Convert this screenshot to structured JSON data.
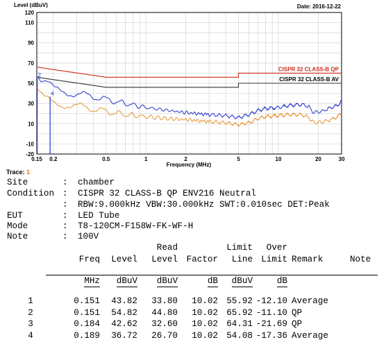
{
  "chart_data": {
    "type": "line",
    "title": "",
    "ylabel": "Level (dBuV)",
    "xlabel": "Frequency (MHz)",
    "date": "Date: 2016-12-22",
    "x_scale": "log",
    "xlim": [
      0.15,
      30
    ],
    "ylim": [
      -20,
      120
    ],
    "x_ticks": [
      {
        "v": 0.15,
        "label": "0.15"
      },
      {
        "v": 0.2,
        "label": "0.2"
      },
      {
        "v": 0.5,
        "label": "0.5"
      },
      {
        "v": 1,
        "label": "1"
      },
      {
        "v": 2,
        "label": "2"
      },
      {
        "v": 5,
        "label": "5"
      },
      {
        "v": 10,
        "label": "10"
      },
      {
        "v": 20,
        "label": "20"
      },
      {
        "v": 30,
        "label": "30"
      }
    ],
    "y_ticks": [
      {
        "v": -20,
        "label": "-20"
      },
      {
        "v": -10,
        "label": "-10"
      },
      {
        "v": 10,
        "label": "10"
      },
      {
        "v": 30,
        "label": "30"
      },
      {
        "v": 50,
        "label": "50"
      },
      {
        "v": 70,
        "label": "70"
      },
      {
        "v": 90,
        "label": "90"
      },
      {
        "v": 110,
        "label": "110"
      },
      {
        "v": 120,
        "label": "120"
      }
    ],
    "grid": true,
    "limit_lines": [
      {
        "name": "CISPR 32 CLASS-B QP",
        "color": "#cc2a1a",
        "points": [
          [
            0.15,
            66
          ],
          [
            0.5,
            56
          ],
          [
            5,
            56
          ],
          [
            5,
            60
          ],
          [
            30,
            60
          ]
        ]
      },
      {
        "name": "CISPR 32 CLASS-B AV",
        "color": "#333333",
        "points": [
          [
            0.15,
            56
          ],
          [
            0.5,
            46
          ],
          [
            5,
            46
          ],
          [
            5,
            50
          ],
          [
            30,
            50
          ]
        ]
      }
    ],
    "series": [
      {
        "color": "#1f2fc8",
        "points": [
          [
            0.15,
            57
          ],
          [
            0.16,
            51
          ],
          [
            0.17,
            49
          ],
          [
            0.184,
            48
          ],
          [
            0.2,
            44
          ],
          [
            0.25,
            42
          ],
          [
            0.3,
            39
          ],
          [
            0.4,
            37
          ],
          [
            0.5,
            34
          ],
          [
            0.7,
            30
          ],
          [
            1,
            26
          ],
          [
            1.5,
            23
          ],
          [
            2,
            21
          ],
          [
            3,
            19
          ],
          [
            4,
            18
          ],
          [
            5,
            16
          ],
          [
            6,
            19
          ],
          [
            7,
            23
          ],
          [
            8,
            25
          ],
          [
            10,
            26
          ],
          [
            12,
            28
          ],
          [
            15,
            29
          ],
          [
            17,
            27
          ],
          [
            18,
            22
          ],
          [
            20,
            21
          ],
          [
            22,
            23
          ],
          [
            25,
            26
          ],
          [
            28,
            28
          ],
          [
            30,
            33
          ]
        ]
      },
      {
        "color": "#e8902a",
        "points": [
          [
            0.15,
            42
          ],
          [
            0.16,
            37
          ],
          [
            0.17,
            34
          ],
          [
            0.184,
            33
          ],
          [
            0.2,
            31
          ],
          [
            0.25,
            29
          ],
          [
            0.3,
            27
          ],
          [
            0.4,
            25
          ],
          [
            0.5,
            22
          ],
          [
            0.7,
            19
          ],
          [
            1,
            17
          ],
          [
            1.5,
            15
          ],
          [
            2,
            14
          ],
          [
            3,
            12
          ],
          [
            4,
            11
          ],
          [
            5,
            9
          ],
          [
            6,
            11
          ],
          [
            7,
            15
          ],
          [
            8,
            17
          ],
          [
            10,
            18
          ],
          [
            12,
            19
          ],
          [
            15,
            19
          ],
          [
            17,
            16
          ],
          [
            18,
            12
          ],
          [
            20,
            11
          ],
          [
            22,
            12
          ],
          [
            25,
            14
          ],
          [
            28,
            17
          ],
          [
            30,
            20
          ]
        ]
      }
    ],
    "markers": [
      {
        "label": "2",
        "freq": 0.151,
        "level": 54.82
      },
      {
        "label": "4",
        "freq": 0.189,
        "level": 36.72
      }
    ]
  },
  "trace": {
    "label": "Trace:",
    "value": "1"
  },
  "info": [
    {
      "label": "Site",
      "value": "chamber"
    },
    {
      "label": "Condition",
      "value": "CISPR 32 CLASS-B QP ENV216 Neutral"
    },
    {
      "label": "",
      "value": "RBW:9.000kHz VBW:30.000kHz SWT:0.010sec DET:Peak"
    },
    {
      "label": "EUT",
      "value": "LED Tube"
    },
    {
      "label": "Mode",
      "value": "T8-120CM-F158W-FK-WF-H"
    },
    {
      "label": "Note",
      "value": "100V"
    }
  ],
  "table": {
    "header_top": [
      "",
      "",
      "",
      "Read",
      "",
      "Limit",
      "Over",
      "",
      ""
    ],
    "header": [
      "",
      "Freq",
      "Level",
      "Level",
      "Factor",
      "Line",
      "Limit",
      "Remark",
      "Note"
    ],
    "units": [
      "",
      "MHz",
      "dBuV",
      "dBuV",
      "dB",
      "dBuV",
      "dB",
      "",
      ""
    ],
    "rows": [
      [
        "1",
        "0.151",
        "43.82",
        "33.80",
        "10.02",
        "55.92",
        "-12.10",
        "Average",
        ""
      ],
      [
        "2",
        "0.151",
        "54.82",
        "44.80",
        "10.02",
        "65.92",
        "-11.10",
        "QP",
        ""
      ],
      [
        "3",
        "0.184",
        "42.62",
        "32.60",
        "10.02",
        "64.31",
        "-21.69",
        "QP",
        ""
      ],
      [
        "4",
        "0.189",
        "36.72",
        "26.70",
        "10.02",
        "54.08",
        "-17.36",
        "Average",
        ""
      ]
    ]
  }
}
